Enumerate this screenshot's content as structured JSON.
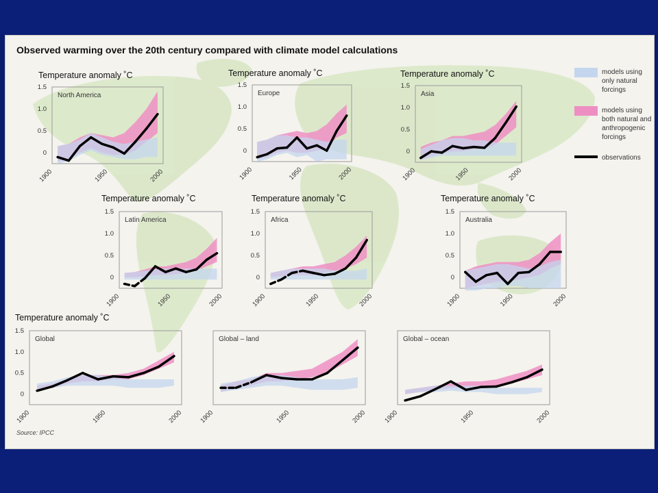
{
  "title": "Observed warming over the 20th century compared with climate model calculations",
  "source": "Source: IPCC",
  "legend": {
    "natural": [
      "models using",
      "only natural",
      "forcings"
    ],
    "both": [
      "models using",
      "both natural and",
      "anthropogenic",
      "forcings"
    ],
    "observations": "observations"
  },
  "colors": {
    "natural_band": "#c4d6ee",
    "both_band": "#ee8fc4",
    "observations": "#000000",
    "map": "#d8e6c4",
    "background": "#f4f3ee",
    "slide": "#0b1f78"
  },
  "chart_data": [
    {
      "type": "line",
      "region": "North America",
      "ylabel": "Temperature anomaly ˚C",
      "xlim": [
        1900,
        2000
      ],
      "ylim": [
        -0.25,
        1.5
      ],
      "yticks": [
        "1.5",
        "1.0",
        "0.5",
        "0"
      ],
      "ytick_values": [
        1.5,
        1.0,
        0.5,
        0
      ],
      "xticks": [
        "1900",
        "1950",
        "2000"
      ],
      "xtick_values": [
        1900,
        1950,
        2000
      ],
      "years": [
        1905,
        1915,
        1925,
        1935,
        1945,
        1955,
        1965,
        1975,
        1985,
        1995
      ],
      "observations": [
        -0.1,
        -0.18,
        0.15,
        0.35,
        0.2,
        0.12,
        -0.02,
        0.25,
        0.55,
        0.88
      ],
      "dashed_until": null,
      "natural_band": {
        "low": [
          -0.25,
          -0.2,
          -0.05,
          0.05,
          -0.05,
          -0.1,
          -0.15,
          -0.15,
          -0.1,
          -0.1
        ],
        "high": [
          0.15,
          0.2,
          0.3,
          0.45,
          0.35,
          0.25,
          0.2,
          0.25,
          0.3,
          0.35
        ]
      },
      "both_band": {
        "low": [
          -0.2,
          -0.15,
          0.0,
          0.1,
          0.0,
          -0.05,
          -0.05,
          0.05,
          0.25,
          0.45
        ],
        "high": [
          0.15,
          0.2,
          0.35,
          0.45,
          0.4,
          0.35,
          0.45,
          0.7,
          1.0,
          1.4
        ]
      }
    },
    {
      "type": "line",
      "region": "Europe",
      "ylabel": "Temperature anomaly ˚C",
      "xlim": [
        1900,
        2000
      ],
      "ylim": [
        -0.25,
        1.5
      ],
      "yticks": [
        "1.5",
        "1.0",
        "0.5",
        "0"
      ],
      "ytick_values": [
        1.5,
        1.0,
        0.5,
        0
      ],
      "xticks": [
        "1900",
        "1950",
        "2000"
      ],
      "xtick_values": [
        1900,
        1950,
        2000
      ],
      "years": [
        1905,
        1915,
        1925,
        1935,
        1945,
        1955,
        1965,
        1975,
        1985,
        1995
      ],
      "observations": [
        -0.15,
        -0.08,
        0.05,
        0.07,
        0.3,
        0.05,
        0.12,
        0.0,
        0.45,
        0.8
      ],
      "dashed_until": null,
      "natural_band": {
        "low": [
          -0.25,
          -0.2,
          -0.1,
          -0.05,
          -0.15,
          -0.1,
          -0.25,
          -0.2,
          -0.2,
          -0.2
        ],
        "high": [
          0.2,
          0.25,
          0.35,
          0.35,
          0.3,
          0.3,
          0.25,
          0.2,
          0.25,
          0.25
        ]
      },
      "both_band": {
        "low": [
          -0.2,
          -0.15,
          -0.05,
          0.0,
          -0.05,
          -0.05,
          0.0,
          0.05,
          0.3,
          0.4
        ],
        "high": [
          0.2,
          0.25,
          0.35,
          0.4,
          0.45,
          0.4,
          0.45,
          0.6,
          0.85,
          1.05
        ]
      }
    },
    {
      "type": "line",
      "region": "Asia",
      "ylabel": "Temperature anomaly ˚C",
      "xlim": [
        1900,
        2000
      ],
      "ylim": [
        -0.25,
        1.5
      ],
      "yticks": [
        "1.5",
        "1.0",
        "0.5",
        "0"
      ],
      "ytick_values": [
        1.5,
        1.0,
        0.5,
        0
      ],
      "xticks": [
        "1900",
        "1950",
        "2000"
      ],
      "xtick_values": [
        1900,
        1950,
        2000
      ],
      "years": [
        1905,
        1915,
        1925,
        1935,
        1945,
        1955,
        1965,
        1975,
        1985,
        1995
      ],
      "observations": [
        -0.15,
        0.0,
        -0.03,
        0.12,
        0.07,
        0.1,
        0.08,
        0.3,
        0.65,
        1.02
      ],
      "dashed_until": null,
      "natural_band": {
        "low": [
          -0.2,
          -0.15,
          -0.1,
          -0.1,
          -0.1,
          -0.1,
          -0.1,
          -0.1,
          -0.1,
          -0.1
        ],
        "high": [
          0.05,
          0.15,
          0.25,
          0.3,
          0.3,
          0.25,
          0.25,
          0.2,
          0.2,
          0.2
        ]
      },
      "both_band": {
        "low": [
          -0.2,
          -0.1,
          -0.05,
          0.0,
          0.0,
          0.05,
          0.05,
          0.15,
          0.35,
          0.55
        ],
        "high": [
          0.1,
          0.2,
          0.25,
          0.35,
          0.35,
          0.4,
          0.45,
          0.6,
          0.85,
          1.15
        ]
      }
    },
    {
      "type": "line",
      "region": "Latin America",
      "ylabel": "Temperature anomaly ˚C",
      "xlim": [
        1900,
        2000
      ],
      "ylim": [
        -0.25,
        1.5
      ],
      "yticks": [
        "1.5",
        "1.0",
        "0.5",
        "0"
      ],
      "ytick_values": [
        1.5,
        1.0,
        0.5,
        0
      ],
      "xticks": [
        "1900",
        "1950",
        "2000"
      ],
      "xtick_values": [
        1900,
        1950,
        2000
      ],
      "years": [
        1905,
        1915,
        1925,
        1935,
        1945,
        1955,
        1965,
        1975,
        1985,
        1995
      ],
      "observations": [
        -0.15,
        -0.2,
        -0.02,
        0.25,
        0.12,
        0.2,
        0.12,
        0.18,
        0.4,
        0.55
      ],
      "dashed_until": 1925,
      "natural_band": {
        "low": [
          -0.05,
          -0.05,
          -0.05,
          -0.05,
          -0.05,
          -0.05,
          -0.05,
          -0.05,
          -0.05,
          -0.05
        ],
        "high": [
          0.1,
          0.12,
          0.15,
          0.18,
          0.2,
          0.2,
          0.2,
          0.2,
          0.2,
          0.2
        ]
      },
      "both_band": {
        "low": [
          0.0,
          0.0,
          0.02,
          0.05,
          0.05,
          0.07,
          0.1,
          0.15,
          0.25,
          0.35
        ],
        "high": [
          0.1,
          0.12,
          0.18,
          0.25,
          0.25,
          0.3,
          0.35,
          0.45,
          0.65,
          0.9
        ]
      }
    },
    {
      "type": "line",
      "region": "Africa",
      "ylabel": "Temperature anomaly ˚C",
      "xlim": [
        1900,
        2000
      ],
      "ylim": [
        -0.25,
        1.5
      ],
      "yticks": [
        "1.5",
        "1.0",
        "0.5",
        "0"
      ],
      "ytick_values": [
        1.5,
        1.0,
        0.5,
        0
      ],
      "xticks": [
        "1900",
        "1950",
        "2000"
      ],
      "xtick_values": [
        1900,
        1950,
        2000
      ],
      "years": [
        1905,
        1915,
        1925,
        1935,
        1945,
        1955,
        1965,
        1975,
        1985,
        1995
      ],
      "observations": [
        -0.15,
        -0.05,
        0.1,
        0.15,
        0.1,
        0.05,
        0.08,
        0.2,
        0.45,
        0.85
      ],
      "dashed_until": 1935,
      "natural_band": {
        "low": [
          -0.05,
          -0.05,
          -0.05,
          -0.05,
          -0.05,
          -0.05,
          -0.05,
          -0.05,
          -0.05,
          -0.05
        ],
        "high": [
          0.1,
          0.15,
          0.2,
          0.2,
          0.2,
          0.2,
          0.15,
          0.15,
          0.15,
          0.2
        ]
      },
      "both_band": {
        "low": [
          0.0,
          0.02,
          0.05,
          0.05,
          0.05,
          0.1,
          0.15,
          0.2,
          0.3,
          0.45
        ],
        "high": [
          0.1,
          0.15,
          0.2,
          0.25,
          0.25,
          0.3,
          0.35,
          0.5,
          0.7,
          0.95
        ]
      }
    },
    {
      "type": "line",
      "region": "Australia",
      "ylabel": "Temperature anomaly ˚C",
      "xlim": [
        1900,
        2000
      ],
      "ylim": [
        -0.25,
        1.5
      ],
      "yticks": [
        "1.5",
        "1.0",
        "0.5",
        "0"
      ],
      "ytick_values": [
        1.5,
        1.0,
        0.5,
        0
      ],
      "xticks": [
        "1900",
        "1950",
        "2000"
      ],
      "xtick_values": [
        1900,
        1950,
        2000
      ],
      "years": [
        1905,
        1915,
        1925,
        1935,
        1945,
        1955,
        1965,
        1975,
        1985,
        1995
      ],
      "observations": [
        0.12,
        -0.1,
        0.05,
        0.1,
        -0.15,
        0.1,
        0.12,
        0.3,
        0.58,
        0.58
      ],
      "dashed_until": null,
      "natural_band": {
        "low": [
          -0.3,
          -0.3,
          -0.25,
          -0.25,
          -0.2,
          -0.2,
          -0.25,
          -0.25,
          -0.25,
          -0.25
        ],
        "high": [
          0.15,
          0.2,
          0.25,
          0.3,
          0.3,
          0.25,
          0.2,
          0.25,
          0.35,
          0.4
        ]
      },
      "both_band": {
        "low": [
          -0.25,
          -0.2,
          -0.15,
          -0.1,
          -0.1,
          -0.05,
          0.0,
          0.05,
          0.2,
          0.3
        ],
        "high": [
          0.15,
          0.25,
          0.3,
          0.35,
          0.35,
          0.35,
          0.4,
          0.55,
          0.8,
          1.0
        ]
      }
    },
    {
      "type": "line",
      "region": "Global",
      "ylabel": "Temperature anomaly ˚C",
      "xlim": [
        1900,
        2000
      ],
      "ylim": [
        -0.25,
        1.5
      ],
      "yticks": [
        "1.5",
        "1.0",
        "0.5",
        "0"
      ],
      "ytick_values": [
        1.5,
        1.0,
        0.5,
        0
      ],
      "xticks": [
        "1900",
        "1950",
        "2000"
      ],
      "xtick_values": [
        1900,
        1950,
        2000
      ],
      "years": [
        1905,
        1915,
        1925,
        1935,
        1945,
        1955,
        1965,
        1975,
        1985,
        1995
      ],
      "observations": [
        0.08,
        0.18,
        0.33,
        0.5,
        0.35,
        0.42,
        0.4,
        0.5,
        0.65,
        0.9
      ],
      "dashed_until": null,
      "natural_band": {
        "low": [
          0.1,
          0.15,
          0.2,
          0.2,
          0.2,
          0.2,
          0.15,
          0.15,
          0.15,
          0.2
        ],
        "high": [
          0.25,
          0.3,
          0.4,
          0.45,
          0.45,
          0.4,
          0.35,
          0.35,
          0.35,
          0.35
        ]
      },
      "both_band": {
        "low": [
          0.1,
          0.15,
          0.25,
          0.3,
          0.3,
          0.35,
          0.35,
          0.45,
          0.6,
          0.75
        ],
        "high": [
          0.2,
          0.25,
          0.35,
          0.45,
          0.45,
          0.45,
          0.5,
          0.6,
          0.8,
          1.0
        ]
      }
    },
    {
      "type": "line",
      "region": "Global – land",
      "ylabel": "",
      "xlim": [
        1900,
        2000
      ],
      "ylim": [
        -0.25,
        1.5
      ],
      "yticks": [],
      "ytick_values": [],
      "xticks": [
        "1900",
        "1950",
        "2000"
      ],
      "xtick_values": [
        1900,
        1950,
        2000
      ],
      "years": [
        1905,
        1915,
        1925,
        1935,
        1945,
        1955,
        1965,
        1975,
        1985,
        1995
      ],
      "observations": [
        0.15,
        0.15,
        0.28,
        0.45,
        0.38,
        0.35,
        0.35,
        0.5,
        0.8,
        1.1
      ],
      "dashed_until": 1925,
      "natural_band": {
        "low": [
          0.05,
          0.1,
          0.15,
          0.2,
          0.2,
          0.15,
          0.1,
          0.1,
          0.1,
          0.15
        ],
        "high": [
          0.25,
          0.3,
          0.4,
          0.45,
          0.45,
          0.4,
          0.35,
          0.35,
          0.35,
          0.4
        ]
      },
      "both_band": {
        "low": [
          0.05,
          0.15,
          0.2,
          0.3,
          0.3,
          0.35,
          0.4,
          0.5,
          0.7,
          0.9
        ],
        "high": [
          0.2,
          0.3,
          0.35,
          0.5,
          0.5,
          0.55,
          0.6,
          0.8,
          1.0,
          1.3
        ]
      }
    },
    {
      "type": "line",
      "region": "Global – ocean",
      "ylabel": "",
      "xlim": [
        1900,
        2000
      ],
      "ylim": [
        -0.25,
        1.5
      ],
      "yticks": [],
      "ytick_values": [],
      "xticks": [
        "1900",
        "1950",
        "2000"
      ],
      "xtick_values": [
        1900,
        1950,
        2000
      ],
      "years": [
        1905,
        1915,
        1925,
        1935,
        1945,
        1955,
        1965,
        1975,
        1985,
        1995
      ],
      "observations": [
        -0.15,
        -0.05,
        0.12,
        0.3,
        0.1,
        0.17,
        0.18,
        0.28,
        0.4,
        0.58
      ],
      "dashed_until": null,
      "natural_band": {
        "low": [
          0.0,
          0.05,
          0.05,
          0.08,
          0.05,
          0.05,
          0.0,
          0.0,
          0.0,
          0.05
        ],
        "high": [
          0.1,
          0.15,
          0.2,
          0.2,
          0.2,
          0.2,
          0.15,
          0.15,
          0.15,
          0.15
        ]
      },
      "both_band": {
        "low": [
          0.0,
          0.05,
          0.1,
          0.15,
          0.15,
          0.2,
          0.2,
          0.25,
          0.35,
          0.45
        ],
        "high": [
          0.1,
          0.15,
          0.2,
          0.25,
          0.3,
          0.3,
          0.35,
          0.45,
          0.55,
          0.7
        ]
      }
    }
  ]
}
